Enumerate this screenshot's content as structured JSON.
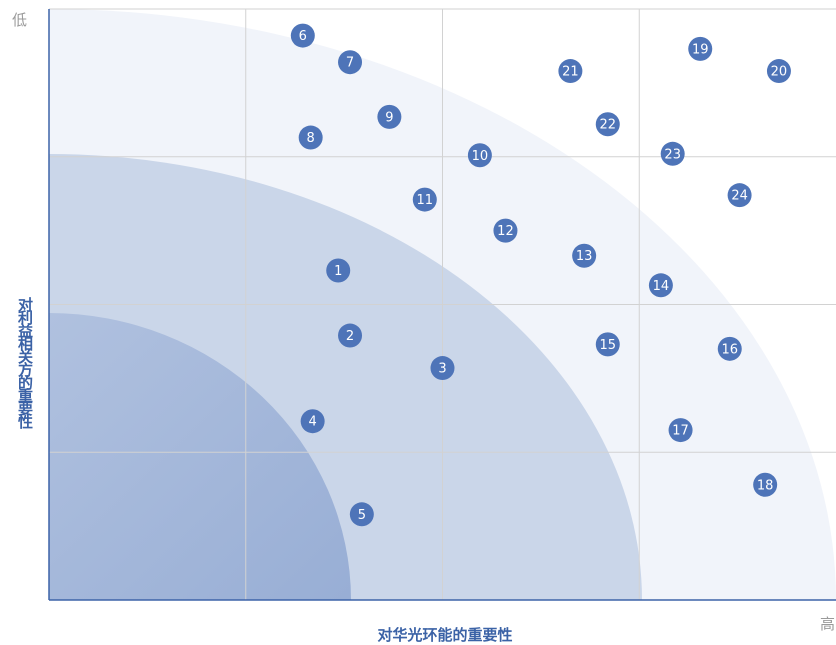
{
  "chart_data": {
    "type": "scatter",
    "xlabel": "对华光环能的重要性",
    "ylabel": "对利益相关方的重要性",
    "axis_corner_low": "低",
    "axis_corner_high": "高",
    "grid": true,
    "xlim": [
      0,
      4
    ],
    "ylim": [
      4,
      0
    ],
    "point_color": "#4e74b8",
    "zone_colors": [
      "#f1f4fa",
      "#cad6e9",
      "#9fb3d7"
    ],
    "points": [
      {
        "label": "1",
        "x": 1.47,
        "y": 1.77
      },
      {
        "label": "2",
        "x": 1.53,
        "y": 2.21
      },
      {
        "label": "3",
        "x": 2.0,
        "y": 2.43
      },
      {
        "label": "4",
        "x": 1.34,
        "y": 2.79
      },
      {
        "label": "5",
        "x": 1.59,
        "y": 3.42
      },
      {
        "label": "6",
        "x": 1.29,
        "y": 0.18
      },
      {
        "label": "7",
        "x": 1.53,
        "y": 0.36
      },
      {
        "label": "8",
        "x": 1.33,
        "y": 0.87
      },
      {
        "label": "9",
        "x": 1.73,
        "y": 0.73
      },
      {
        "label": "10",
        "x": 2.19,
        "y": 0.99
      },
      {
        "label": "11",
        "x": 1.91,
        "y": 1.29
      },
      {
        "label": "12",
        "x": 2.32,
        "y": 1.5
      },
      {
        "label": "13",
        "x": 2.72,
        "y": 1.67
      },
      {
        "label": "14",
        "x": 3.11,
        "y": 1.87
      },
      {
        "label": "15",
        "x": 2.84,
        "y": 2.27
      },
      {
        "label": "16",
        "x": 3.46,
        "y": 2.3
      },
      {
        "label": "17",
        "x": 3.21,
        "y": 2.85
      },
      {
        "label": "18",
        "x": 3.64,
        "y": 3.22
      },
      {
        "label": "19",
        "x": 3.31,
        "y": 0.27
      },
      {
        "label": "20",
        "x": 3.71,
        "y": 0.42
      },
      {
        "label": "21",
        "x": 2.65,
        "y": 0.42
      },
      {
        "label": "22",
        "x": 2.84,
        "y": 0.78
      },
      {
        "label": "23",
        "x": 3.17,
        "y": 0.98
      },
      {
        "label": "24",
        "x": 3.51,
        "y": 1.26
      }
    ]
  }
}
